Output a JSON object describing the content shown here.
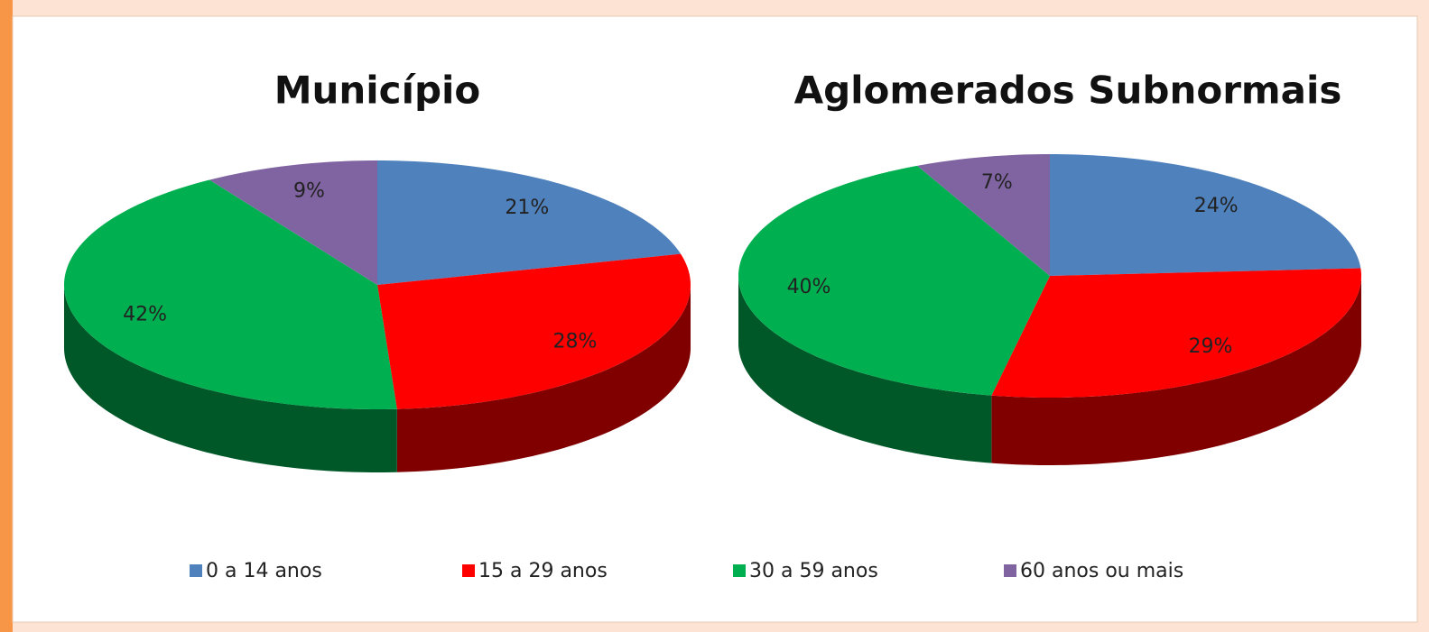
{
  "chart_data": [
    {
      "type": "pie",
      "title": "Município",
      "categories": [
        "0 a 14 anos",
        "15 a 29 anos",
        "30 a 59 anos",
        "60 anos ou mais"
      ],
      "values": [
        21,
        28,
        42,
        9
      ],
      "value_labels": [
        "21%",
        "28%",
        "42%",
        "9%"
      ],
      "colors": [
        "#4f81bd",
        "#ff0000",
        "#00b050",
        "#8064a2"
      ]
    },
    {
      "type": "pie",
      "title": "Aglomerados Subnormais",
      "categories": [
        "0 a 14 anos",
        "15 a 29 anos",
        "30 a 59 anos",
        "60 anos ou mais"
      ],
      "values": [
        24,
        29,
        40,
        7
      ],
      "value_labels": [
        "24%",
        "29%",
        "40%",
        "7%"
      ],
      "colors": [
        "#4f81bd",
        "#ff0000",
        "#00b050",
        "#8064a2"
      ]
    }
  ]
}
